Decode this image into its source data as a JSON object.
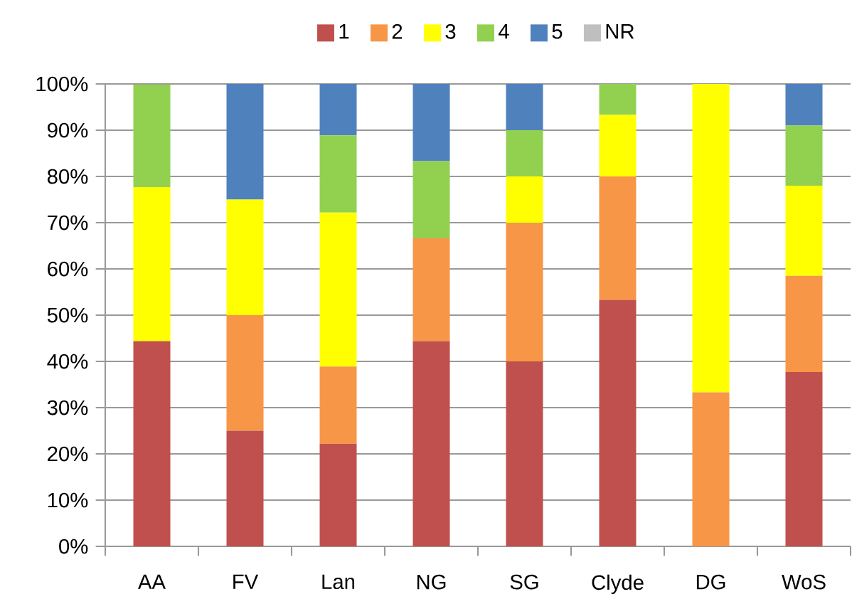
{
  "chart_data": {
    "type": "bar",
    "stacked": true,
    "categories": [
      "AA",
      "FV",
      "Lan",
      "NG",
      "SG",
      "Clyde",
      "DG",
      "WoS"
    ],
    "series": [
      {
        "name": "1",
        "color": "#c0504d",
        "values": [
          44.4,
          25,
          22.2,
          44.4,
          40,
          53.3,
          0,
          37.7
        ]
      },
      {
        "name": "2",
        "color": "#f79646",
        "values": [
          0,
          25,
          16.7,
          22.2,
          30,
          26.7,
          33.3,
          20.8
        ]
      },
      {
        "name": "3",
        "color": "#ffff00",
        "values": [
          33.3,
          25,
          33.3,
          0,
          10,
          13.3,
          66.7,
          19.5
        ]
      },
      {
        "name": "4",
        "color": "#92d050",
        "values": [
          22.2,
          0,
          16.7,
          16.7,
          10,
          6.7,
          0,
          13
        ]
      },
      {
        "name": "5",
        "color": "#4f81bd",
        "values": [
          0,
          25,
          11.1,
          16.7,
          10,
          0,
          0,
          9
        ]
      },
      {
        "name": "NR",
        "color": "#bfbfbf",
        "values": [
          0,
          0,
          0,
          0,
          0,
          0,
          0,
          0
        ]
      }
    ],
    "ylim": [
      0,
      100
    ],
    "yticks": [
      {
        "value": 0,
        "label": "0%"
      },
      {
        "value": 10,
        "label": "10%"
      },
      {
        "value": 20,
        "label": "20%"
      },
      {
        "value": 30,
        "label": "30%"
      },
      {
        "value": 40,
        "label": "40%"
      },
      {
        "value": 50,
        "label": "50%"
      },
      {
        "value": 60,
        "label": "60%"
      },
      {
        "value": 70,
        "label": "70%"
      },
      {
        "value": 80,
        "label": "80%"
      },
      {
        "value": 90,
        "label": "90%"
      },
      {
        "value": 100,
        "label": "100%"
      }
    ],
    "grid": "y",
    "legend": "top"
  }
}
